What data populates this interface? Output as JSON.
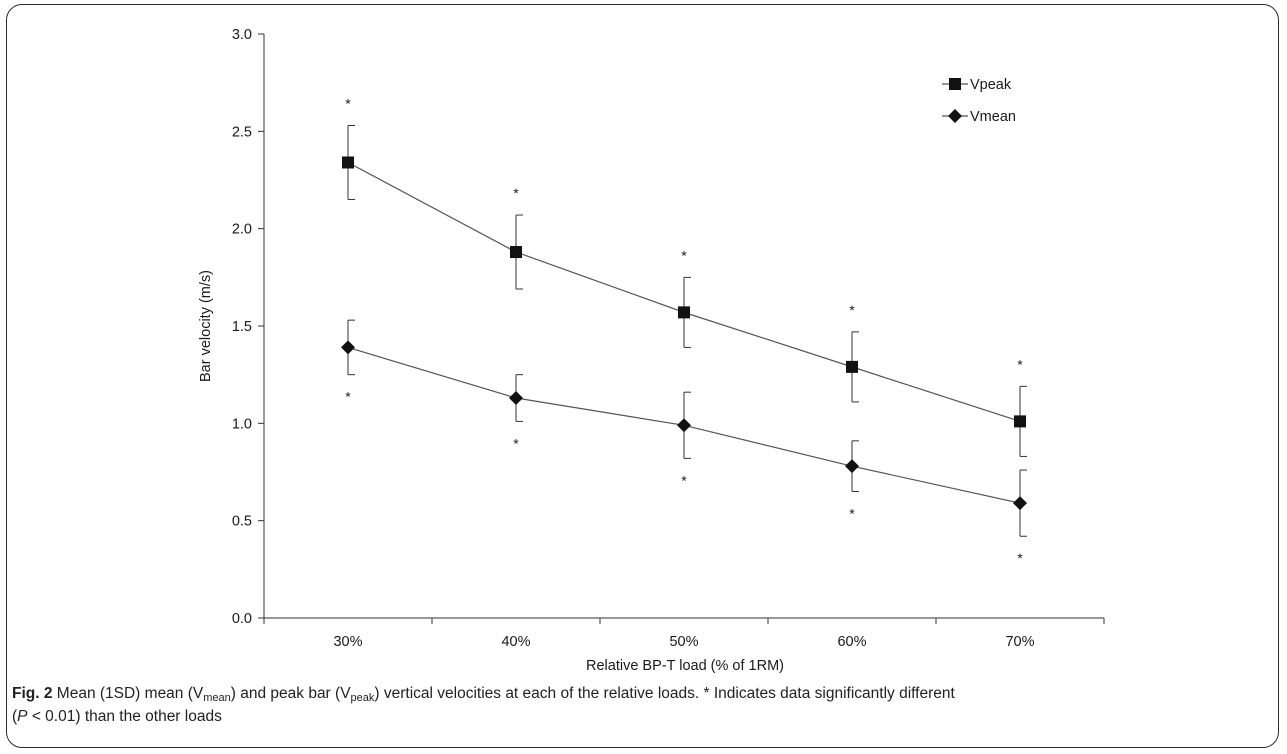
{
  "chart_data": {
    "type": "line",
    "categories": [
      "30%",
      "40%",
      "50%",
      "60%",
      "70%"
    ],
    "ylim": [
      0.0,
      3.0
    ],
    "yticks": [
      "0.0",
      "0.5",
      "1.0",
      "1.5",
      "2.0",
      "2.5",
      "3.0"
    ],
    "xlabel": "Relative BP-T load (% of 1RM)",
    "ylabel": "Bar velocity (m/s)",
    "legend_position": "top-right",
    "grid": false,
    "series": [
      {
        "name": "Vpeak",
        "marker": "square",
        "values": [
          2.34,
          1.88,
          1.57,
          1.29,
          1.01
        ],
        "sd": [
          0.19,
          0.19,
          0.18,
          0.18,
          0.18
        ],
        "asterisk": "above"
      },
      {
        "name": "Vmean",
        "marker": "diamond",
        "values": [
          1.39,
          1.13,
          0.99,
          0.78,
          0.59
        ],
        "sd": [
          0.14,
          0.12,
          0.17,
          0.13,
          0.17
        ],
        "asterisk": "below"
      }
    ],
    "significance_marker": "*"
  },
  "caption": {
    "label": "Fig. 2",
    "part1": " Mean (1SD) mean (V",
    "sub1": "mean",
    "part2": ") and peak bar (V",
    "sub2": "peak",
    "part3": ") vertical velocities at each of the relative loads. * Indicates data significantly different",
    "part4": "(",
    "p_italic": "P",
    "part5": " < 0.01) than the other loads"
  },
  "colors": {
    "line": "#555555",
    "marker": "#111111",
    "axis": "#333333"
  }
}
